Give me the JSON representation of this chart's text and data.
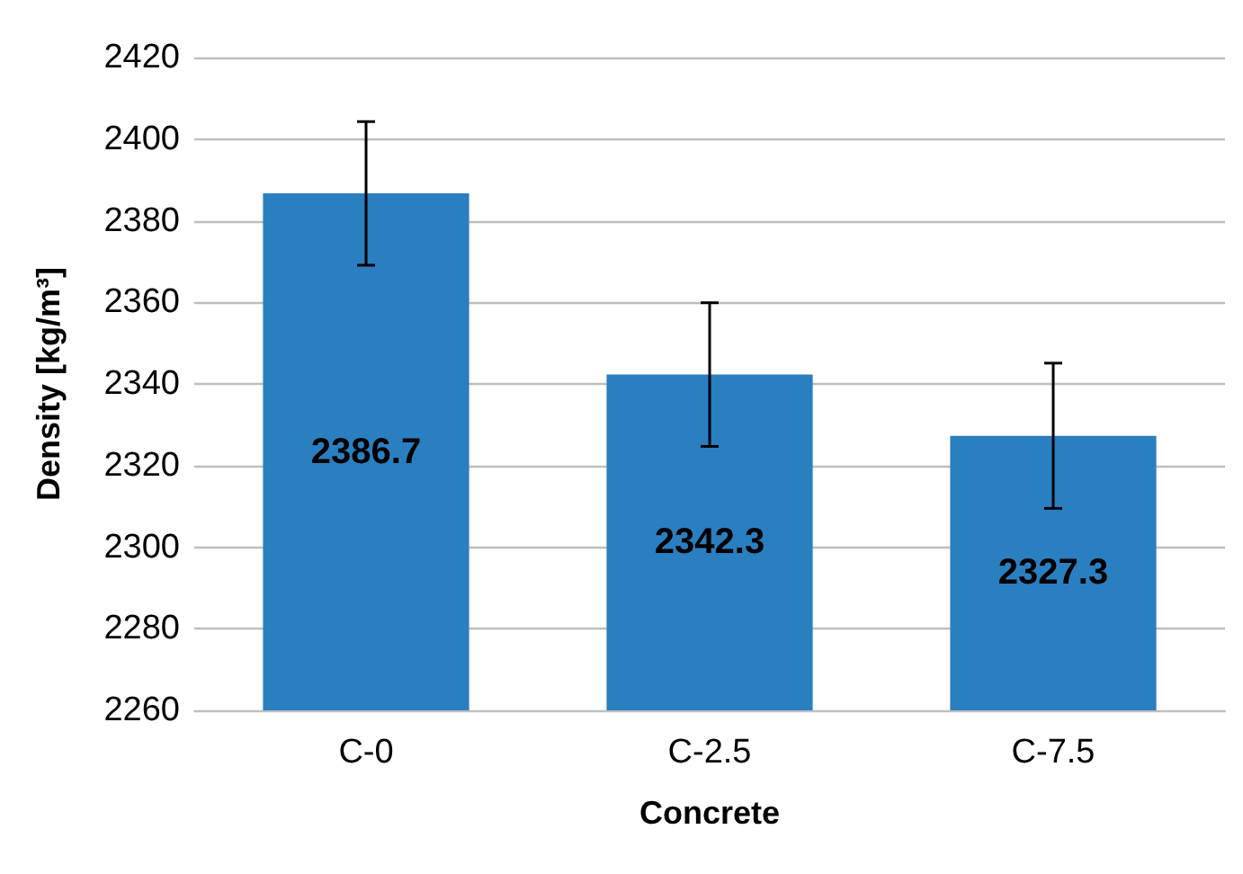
{
  "chart_data": {
    "type": "bar",
    "xlabel": "Concrete",
    "ylabel": "Density [kg/m³]",
    "categories": [
      "C-0",
      "C-2.5",
      "C-7.5"
    ],
    "values": [
      2386.7,
      2342.3,
      2327.3
    ],
    "errors": [
      17.6,
      17.6,
      17.8
    ],
    "color": "#2a7fc1",
    "ylim": [
      2260,
      2420
    ],
    "yticks": [
      2260,
      2280,
      2300,
      2320,
      2340,
      2360,
      2380,
      2400,
      2420
    ],
    "grid": "y",
    "data_labels": true
  }
}
